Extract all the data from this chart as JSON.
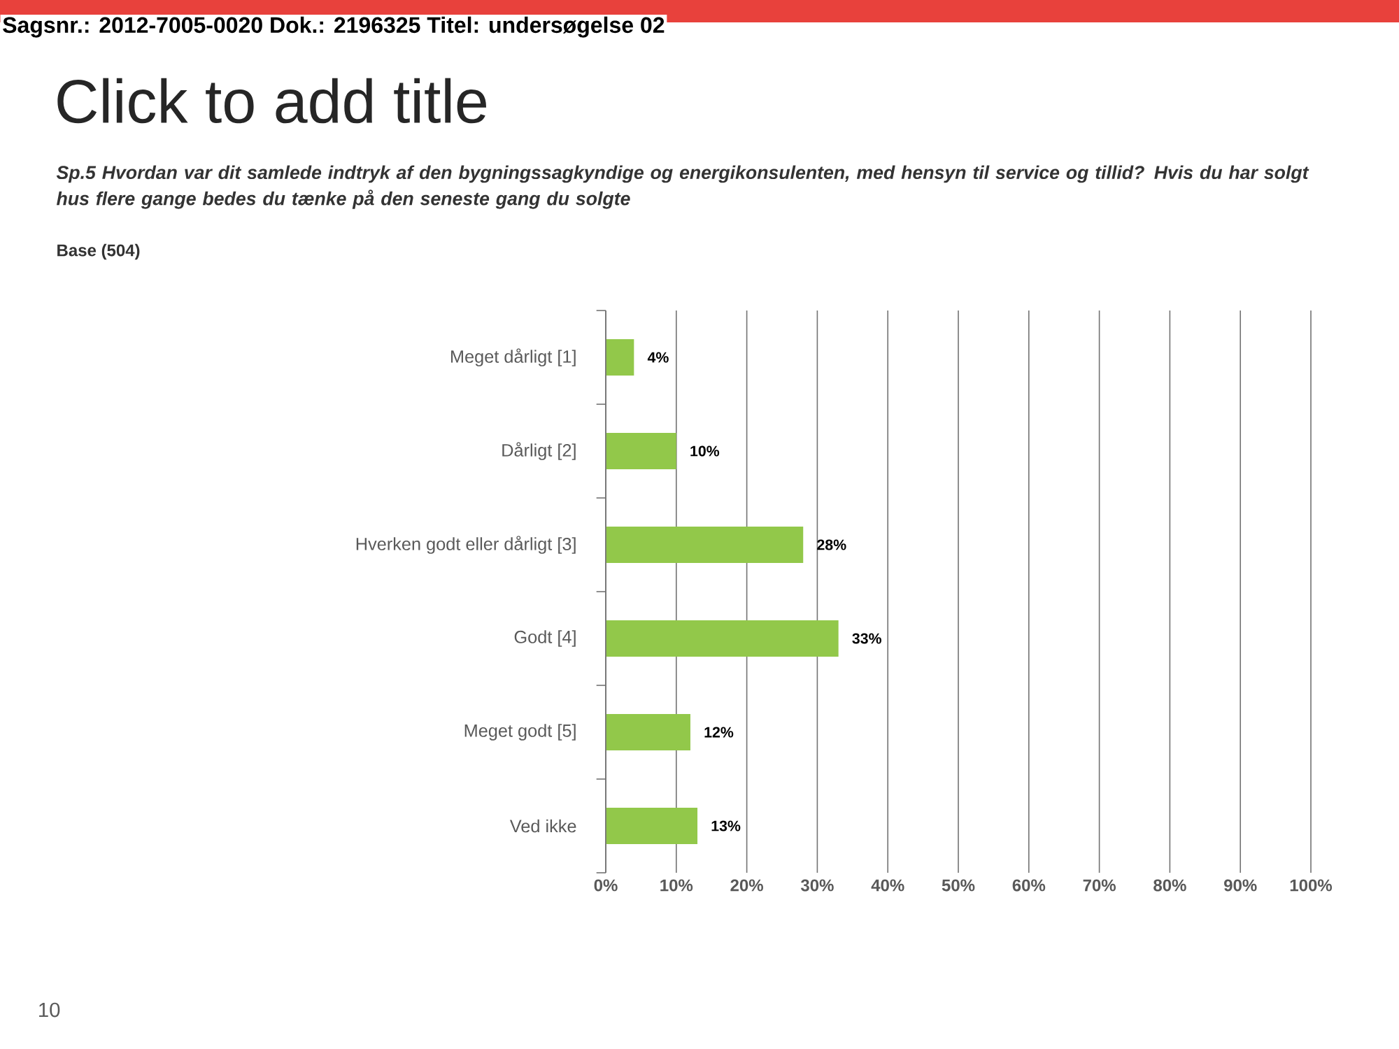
{
  "chart_data": {
    "type": "bar",
    "orientation": "horizontal",
    "title": "Click to add title",
    "subtitle": "Sp.5 Hvordan var dit samlede indtryk af den bygningssagkyndige og energikonsulenten, med hensyn til service og tillid? Hvis du har solgt hus flere gange bedes du tænke på den seneste gang du solgte",
    "annotations": [
      "Sagsnr.: 2012-7005-0020 Dok.: 2196325 Titel: undersøgelse 02",
      "Base (504)",
      "10"
    ],
    "categories": [
      "Meget dårligt [1]",
      "Dårligt [2]",
      "Hverken godt eller dårligt [3]",
      "Godt [4]",
      "Meget godt [5]",
      "Ved ikke"
    ],
    "values": [
      4,
      10,
      28,
      33,
      12,
      13
    ],
    "value_labels": [
      "4%",
      "10%",
      "28%",
      "33%",
      "12%",
      "13%"
    ],
    "color": "#92c84a",
    "xlim": [
      0,
      100
    ],
    "xticks": [
      {
        "value": 0,
        "label": "0%"
      },
      {
        "value": 10,
        "label": "10%"
      },
      {
        "value": 20,
        "label": "20%"
      },
      {
        "value": 30,
        "label": "30%"
      },
      {
        "value": 40,
        "label": "40%"
      },
      {
        "value": 50,
        "label": "50%"
      },
      {
        "value": 60,
        "label": "60%"
      },
      {
        "value": 70,
        "label": "70%"
      },
      {
        "value": 80,
        "label": "80%"
      },
      {
        "value": 90,
        "label": "90%"
      },
      {
        "value": 100,
        "label": "100%"
      }
    ],
    "grid": "x"
  }
}
